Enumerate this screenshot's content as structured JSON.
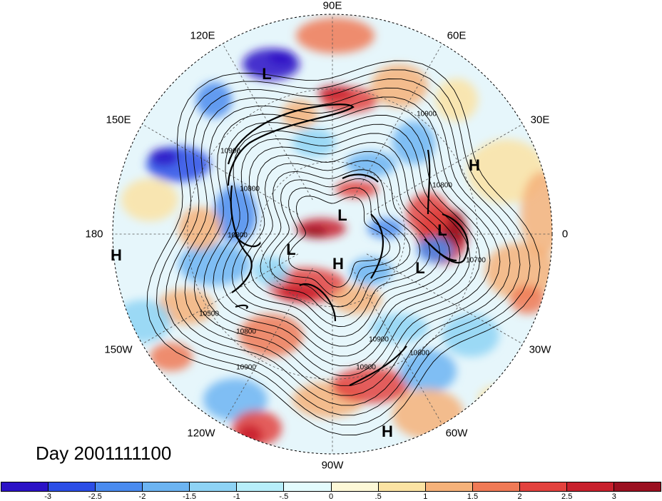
{
  "title": "Day 2001111100",
  "longitude_labels": [
    "90E",
    "60E",
    "30E",
    "0",
    "30W",
    "60W",
    "90W",
    "120W",
    "150W",
    "180",
    "150E",
    "120E"
  ],
  "pressure_centers": [
    {
      "label": "L"
    },
    {
      "label": "H"
    },
    {
      "label": "L"
    },
    {
      "label": "L"
    },
    {
      "label": "L"
    },
    {
      "label": "H"
    },
    {
      "label": "L"
    },
    {
      "label": "H"
    },
    {
      "label": "H"
    }
  ],
  "contour_labels": [
    "10900",
    "10900",
    "10800",
    "10800",
    "10800",
    "10700",
    "10500",
    "10800",
    "10900",
    "10900",
    "10800",
    "10900"
  ],
  "colorbar": {
    "ticks": [
      "-3",
      "-2.5",
      "-2",
      "-1.5",
      "-1",
      "-.5",
      "0",
      ".5",
      "1",
      "1.5",
      "2",
      "2.5",
      "3"
    ],
    "colors": [
      "#2b12c6",
      "#2b4ee6",
      "#4a8bef",
      "#6cb4f2",
      "#8ed3f5",
      "#b7eefa",
      "#e3fbfd",
      "#fdf8d7",
      "#fbe3a3",
      "#f6b27a",
      "#f07a56",
      "#e3423e",
      "#c8202d",
      "#9b1020"
    ]
  },
  "map_colors": {
    "ocean_bg": "#ffffff",
    "grid": "#555555",
    "contour": "#000000",
    "coast": "#000000"
  }
}
